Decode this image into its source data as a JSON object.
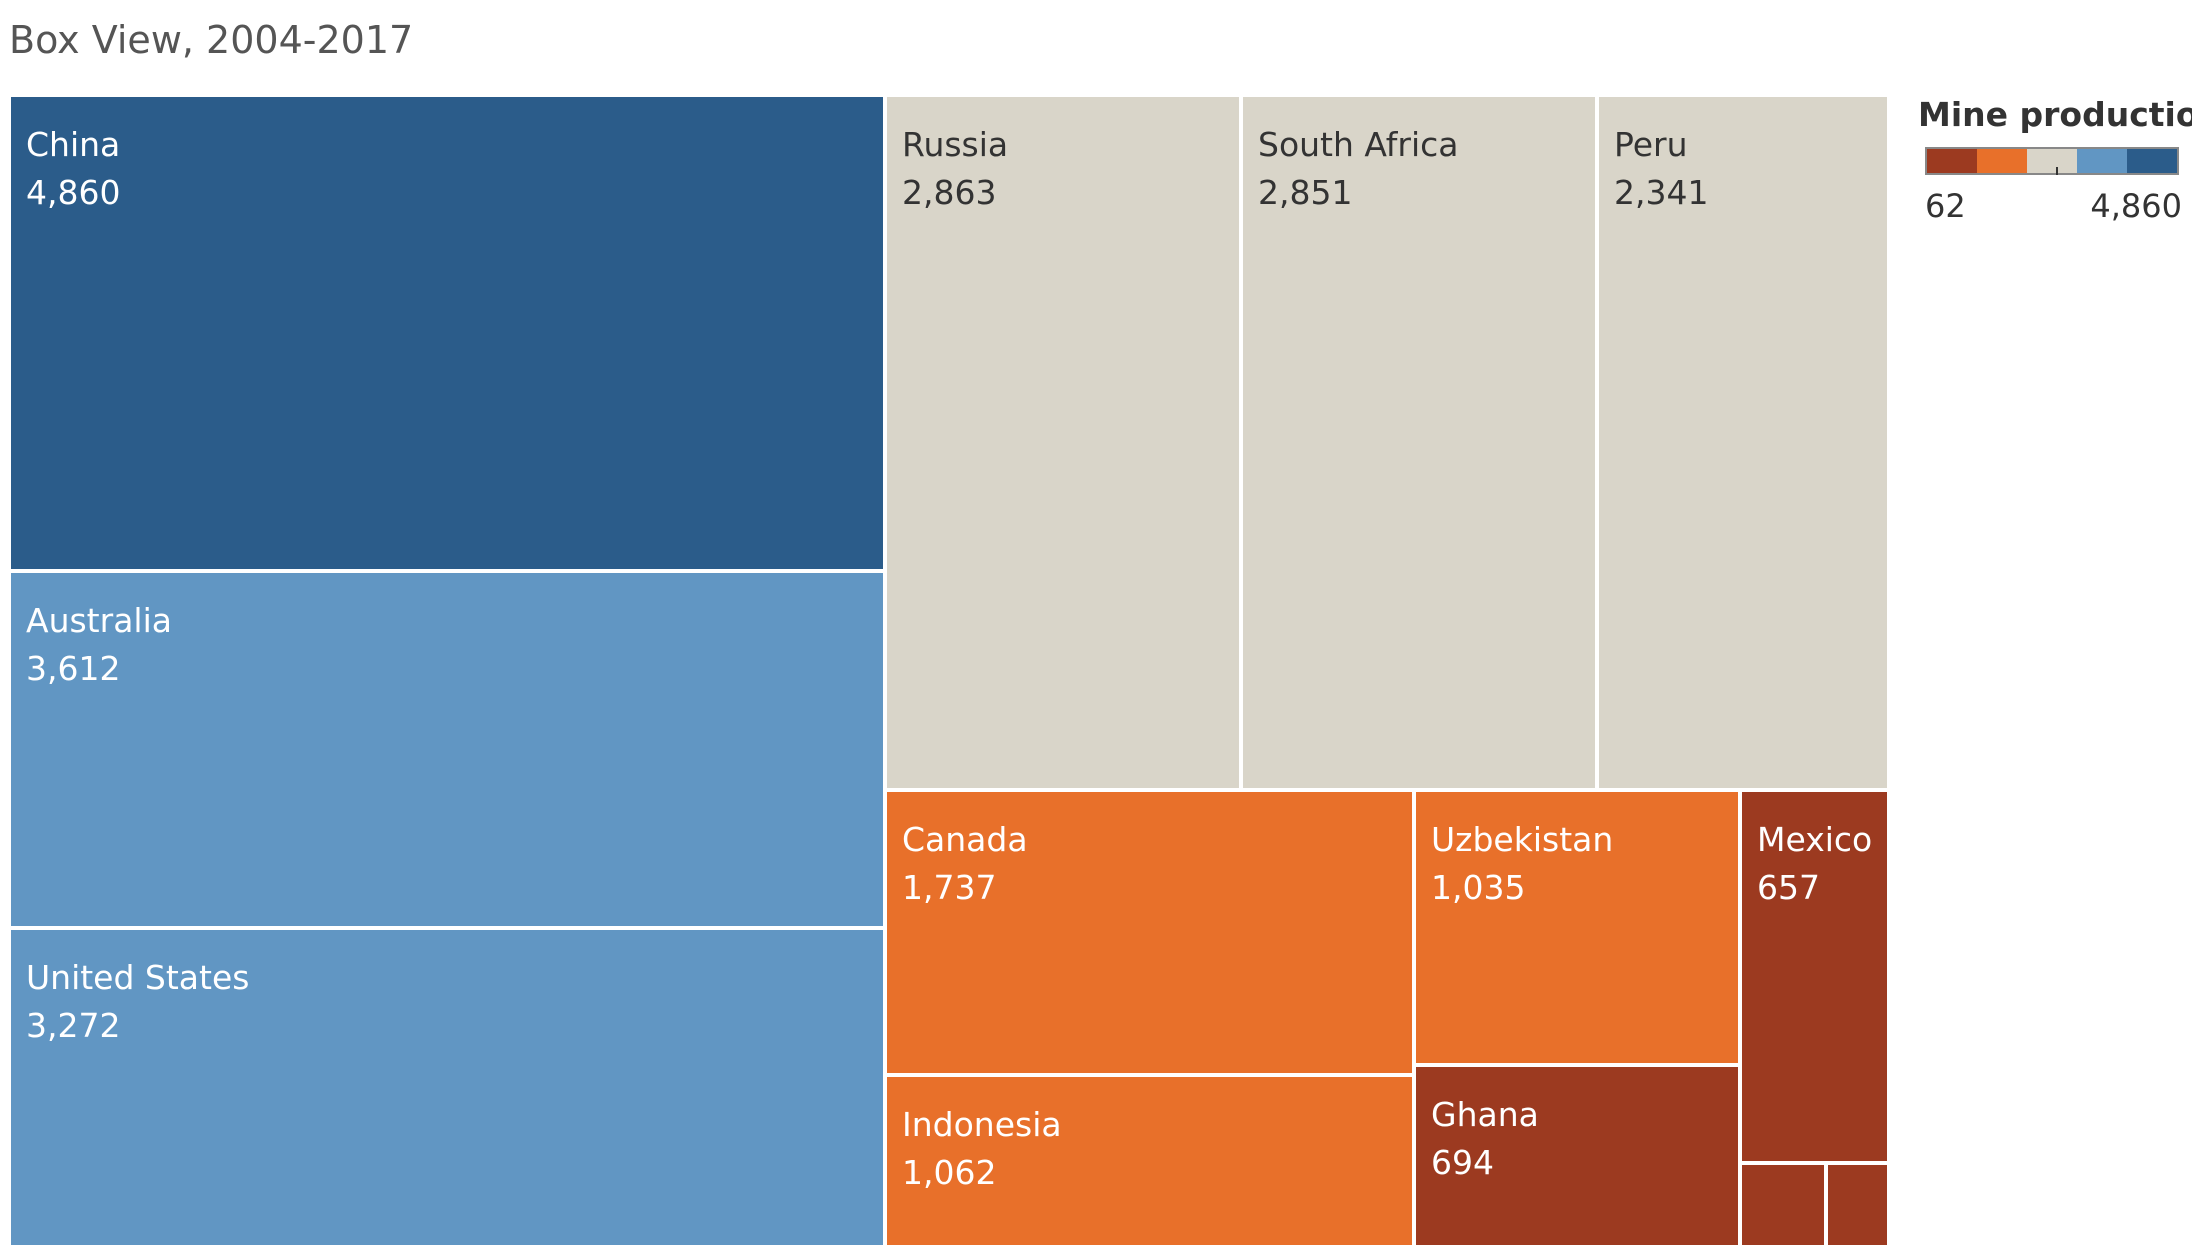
{
  "chart_data": {
    "type": "treemap",
    "title": "Box View, 2004-2017",
    "legend": {
      "title": "Mine production",
      "min": 62,
      "max": 4860,
      "min_label": "62",
      "max_label": "4,860",
      "colors": [
        "#9c3a20",
        "#e8702a",
        "#d9d5c9",
        "#6196c3",
        "#2b5c8a"
      ],
      "placement": "top-right"
    },
    "items": [
      {
        "name": "China",
        "value": 4860,
        "value_label": "4,860",
        "color": "#2b5c8a"
      },
      {
        "name": "Australia",
        "value": 3612,
        "value_label": "3,612",
        "color": "#6196c3"
      },
      {
        "name": "United States",
        "value": 3272,
        "value_label": "3,272",
        "color": "#6196c3"
      },
      {
        "name": "Russia",
        "value": 2863,
        "value_label": "2,863",
        "color": "#d9d5c9"
      },
      {
        "name": "South Africa",
        "value": 2851,
        "value_label": "2,851",
        "color": "#d9d5c9"
      },
      {
        "name": "Peru",
        "value": 2341,
        "value_label": "2,341",
        "color": "#d9d5c9"
      },
      {
        "name": "Canada",
        "value": 1737,
        "value_label": "1,737",
        "color": "#e8702a"
      },
      {
        "name": "Indonesia",
        "value": 1062,
        "value_label": "1,062",
        "color": "#e8702a"
      },
      {
        "name": "Uzbekistan",
        "value": 1035,
        "value_label": "1,035",
        "color": "#e8702a"
      },
      {
        "name": "Ghana",
        "value": 694,
        "value_label": "694",
        "color": "#9c3a20"
      },
      {
        "name": "Mexico",
        "value": 657,
        "value_label": "657",
        "color": "#9c3a20"
      },
      {
        "name": "",
        "value": 0,
        "value_label": "",
        "color": "#9c3a20"
      },
      {
        "name": "",
        "value": 0,
        "value_label": "",
        "color": "#9c3a20"
      }
    ]
  }
}
